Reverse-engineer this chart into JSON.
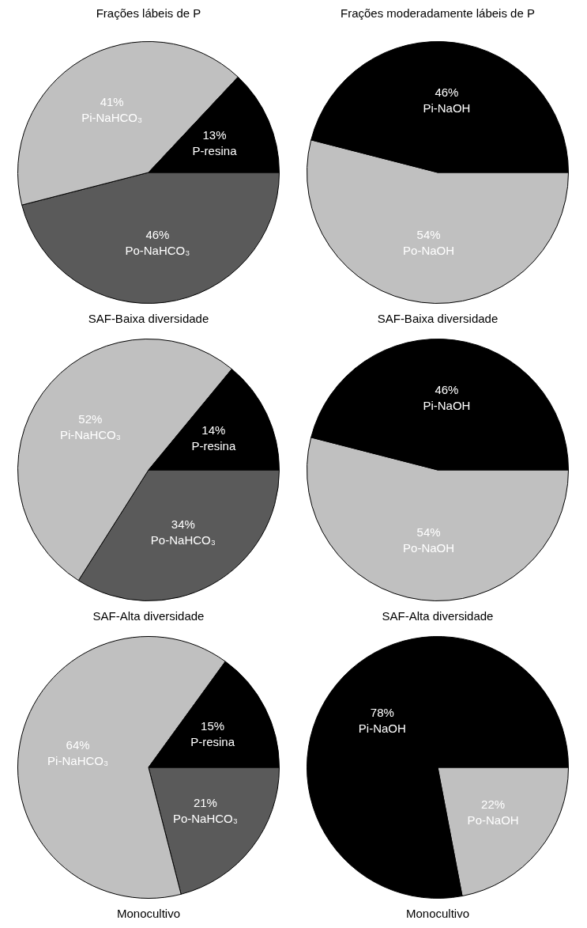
{
  "chart_data": [
    {
      "type": "pie",
      "title": "Frações lábeis de P",
      "xlabel": "SAF-Baixa diversidade",
      "categories": [
        "Po-NaHCO₃",
        "Pi-NaHCO₃",
        "P-resina"
      ],
      "values": [
        46,
        41,
        13
      ],
      "value_labels": [
        "46%",
        "41%",
        "13%"
      ],
      "colors": [
        "#5a5a5a",
        "#c0c0c0",
        "#000000"
      ],
      "legend": false
    },
    {
      "type": "pie",
      "title": "Frações moderadamente lábeis de P",
      "xlabel": "SAF-Baixa diversidade",
      "categories": [
        "Po-NaOH",
        "Pi-NaOH"
      ],
      "values": [
        54,
        46
      ],
      "value_labels": [
        "54%",
        "46%"
      ],
      "colors": [
        "#c0c0c0",
        "#000000"
      ],
      "legend": false
    },
    {
      "type": "pie",
      "xlabel": "SAF-Alta diversidade",
      "categories": [
        "Po-NaHCO₃",
        "Pi-NaHCO₃",
        "P-resina"
      ],
      "values": [
        34,
        52,
        14
      ],
      "value_labels": [
        "34%",
        "52%",
        "14%"
      ],
      "colors": [
        "#5a5a5a",
        "#c0c0c0",
        "#000000"
      ],
      "legend": false
    },
    {
      "type": "pie",
      "xlabel": "SAF-Alta diversidade",
      "categories": [
        "Po-NaOH",
        "Pi-NaOH"
      ],
      "values": [
        54,
        46
      ],
      "value_labels": [
        "54%",
        "46%"
      ],
      "colors": [
        "#c0c0c0",
        "#000000"
      ],
      "legend": false
    },
    {
      "type": "pie",
      "xlabel": "Monocultivo",
      "categories": [
        "Po-NaHCO₃",
        "Pi-NaHCO₃",
        "P-resina"
      ],
      "values": [
        21,
        64,
        15
      ],
      "value_labels": [
        "21%",
        "64%",
        "15%"
      ],
      "colors": [
        "#5a5a5a",
        "#c0c0c0",
        "#000000"
      ],
      "legend": false
    },
    {
      "type": "pie",
      "xlabel": "Monocultivo",
      "categories": [
        "Po-NaOH",
        "Pi-NaOH"
      ],
      "values": [
        22,
        78
      ],
      "value_labels": [
        "22%",
        "78%"
      ],
      "colors": [
        "#c0c0c0",
        "#000000"
      ],
      "legend": false
    }
  ]
}
